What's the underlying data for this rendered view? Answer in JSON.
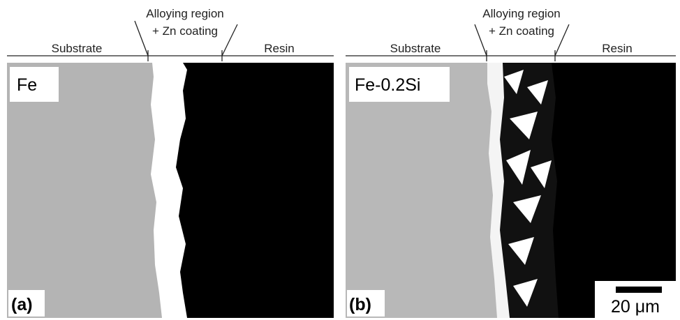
{
  "panels": [
    {
      "label": "(a)",
      "material": "Fe",
      "substrate": "Substrate",
      "alloy_line1": "Alloying region",
      "alloy_line2": "+ Zn coating",
      "resin": "Resin"
    },
    {
      "label": "(b)",
      "material": "Fe-0.2Si",
      "substrate": "Substrate",
      "alloy_line1": "Alloying region",
      "alloy_line2": "+ Zn coating",
      "resin": "Resin"
    }
  ],
  "scale_bar": "20 μm"
}
